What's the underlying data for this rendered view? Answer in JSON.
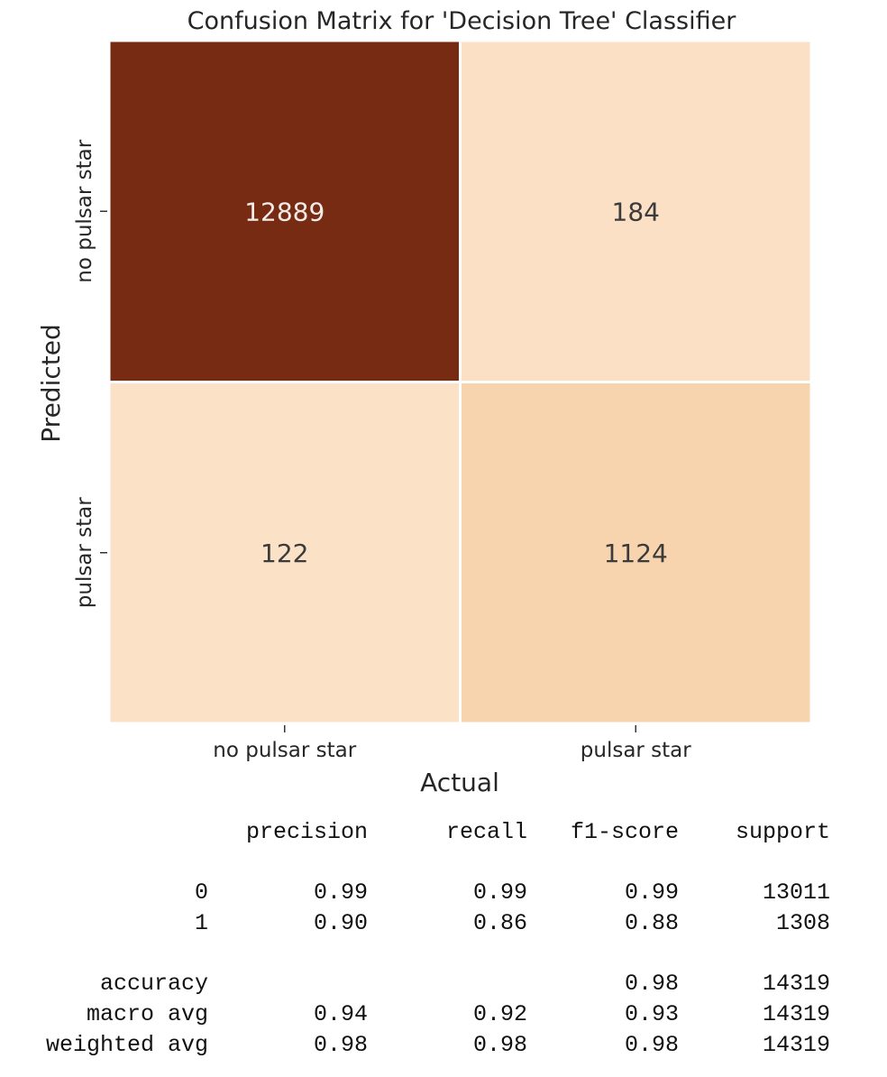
{
  "chart_data": {
    "type": "heatmap",
    "title": "Confusion Matrix for 'Decision Tree' Classifier",
    "xlabel": "Actual",
    "ylabel": "Predicted",
    "x_categories": [
      "no pulsar star",
      "pulsar star"
    ],
    "y_categories": [
      "no pulsar star",
      "pulsar star"
    ],
    "matrix": [
      [
        12889,
        184
      ],
      [
        122,
        1124
      ]
    ],
    "colors": {
      "dark": "#782b13",
      "light_high": "#f7d4ae",
      "light_low": "#fbe1c6",
      "text_on_dark": "#f3ece8",
      "text_on_light": "#3b3b3b"
    },
    "colorbar": false,
    "grid_lines": "white"
  },
  "report": {
    "columns": [
      "precision",
      "recall",
      "f1-score",
      "support"
    ],
    "rows": [
      {
        "label": "0",
        "values": [
          "0.99",
          "0.99",
          "0.99",
          "13011"
        ]
      },
      {
        "label": "1",
        "values": [
          "0.90",
          "0.86",
          "0.88",
          "1308"
        ]
      },
      {
        "label": "accuracy",
        "values": [
          "",
          "",
          "0.98",
          "14319"
        ]
      },
      {
        "label": "macro avg",
        "values": [
          "0.94",
          "0.92",
          "0.93",
          "14319"
        ]
      },
      {
        "label": "weighted avg",
        "values": [
          "0.98",
          "0.98",
          "0.98",
          "14319"
        ]
      }
    ]
  }
}
